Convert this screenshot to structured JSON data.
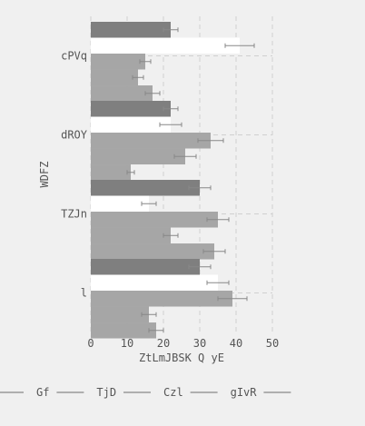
{
  "chart_data": {
    "type": "bar",
    "orientation": "horizontal",
    "xlabel": "ZtLmJBSK  Q yE",
    "ylabel": "WDFZ",
    "xlim": [
      0,
      50
    ],
    "xticks": [
      0,
      10,
      20,
      30,
      40,
      50
    ],
    "categories": [
      "cPVq",
      "dROY",
      "TZJn",
      "l"
    ],
    "grid": true,
    "legend_position": "bottom",
    "series": [
      {
        "name": "",
        "color": "#7f7f7f",
        "values": [
          22,
          22,
          30,
          30
        ],
        "errors": [
          2,
          2,
          3,
          3
        ]
      },
      {
        "name": "Gf",
        "color": "#ffffff",
        "values": [
          41,
          22,
          16,
          35
        ],
        "errors": [
          4,
          3,
          2,
          3
        ]
      },
      {
        "name": "TjD",
        "color": "#a6a6a6",
        "values": [
          15,
          33,
          35,
          39
        ],
        "errors": [
          1.5,
          3.5,
          3,
          4
        ]
      },
      {
        "name": "Czl",
        "color": "#a6a6a6",
        "values": [
          13,
          26,
          22,
          16
        ],
        "errors": [
          1.5,
          3,
          2,
          2
        ]
      },
      {
        "name": "gIvR",
        "color": "#a6a6a6",
        "values": [
          17,
          11,
          34,
          18
        ],
        "errors": [
          2,
          1,
          3,
          2
        ]
      }
    ]
  }
}
